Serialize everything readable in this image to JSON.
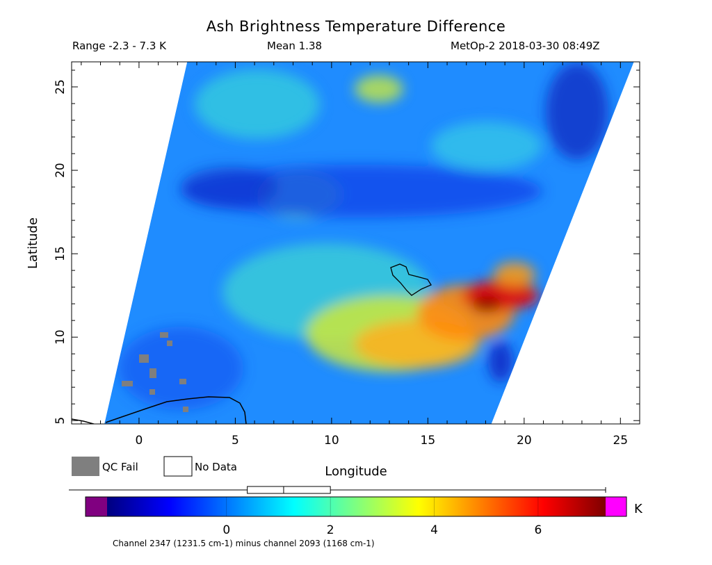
{
  "title": "Ash Brightness Temperature Difference",
  "header": {
    "range": "Range -2.3 - 7.3 K",
    "mean": "Mean 1.38",
    "satellite": "MetOp-2 2018-03-30 08:49Z"
  },
  "legend": {
    "qc_fail_label": "QC Fail",
    "no_data_label": "No Data",
    "qc_fail_color": "#7f7f7f",
    "no_data_color": "#ffffff"
  },
  "chart_data": {
    "type": "heatmap",
    "xlabel": "Longitude",
    "ylabel": "Latitude",
    "xlim": [
      -3.5,
      26
    ],
    "ylim": [
      4.8,
      26.5
    ],
    "xticks": [
      0,
      5,
      10,
      15,
      20,
      25
    ],
    "yticks": [
      5,
      10,
      15,
      20,
      25
    ],
    "swath_corners": [
      [
        -1.8,
        4.8
      ],
      [
        18.3,
        4.8
      ],
      [
        25.7,
        26.5
      ],
      [
        2.5,
        26.5
      ]
    ],
    "value_range": [
      -2.3,
      7.3
    ],
    "mean": 1.38,
    "units": "K",
    "features": [
      {
        "name": "high BTD plume",
        "center": [
          17.5,
          11
        ],
        "peak_value": 7
      },
      {
        "name": "moderate BTD band",
        "center": [
          13,
          9.5
        ],
        "value": 4.5
      },
      {
        "name": "low BTD band",
        "center": [
          10,
          18.5
        ],
        "value": -0.8
      }
    ],
    "colorbar": {
      "min": -2.3,
      "max": 7.3,
      "ticks": [
        0,
        2,
        4,
        6
      ],
      "unit_label": "K",
      "under_color": "#800080",
      "over_color": "#ff00ff",
      "box_whisker": {
        "min": -2.3,
        "q1": 0.4,
        "median": 1.1,
        "q3": 2.0,
        "max": 7.3
      },
      "caption": "Channel 2347 (1231.5 cm-1) minus channel 2093 (1168 cm-1)"
    }
  }
}
